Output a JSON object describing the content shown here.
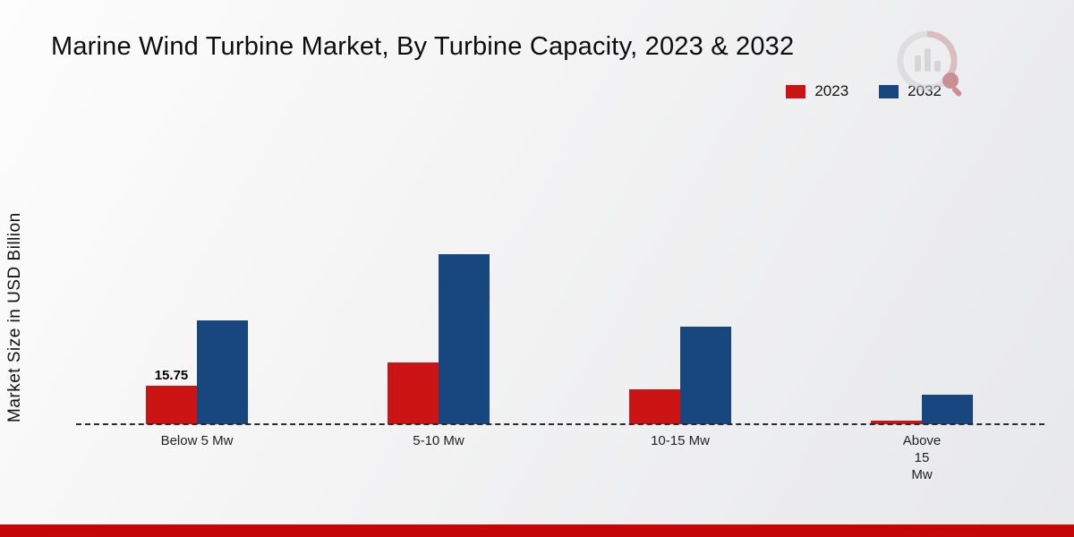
{
  "chart_data": {
    "type": "bar",
    "title": "Marine Wind Turbine Market, By Turbine Capacity, 2023 & 2032",
    "ylabel": "Market Size in USD Billion",
    "xlabel": "",
    "categories": [
      "Below 5 Mw",
      "5-10 Mw",
      "10-15 Mw",
      "Above 15 Mw"
    ],
    "category_label_lines": [
      [
        "Below 5 Mw"
      ],
      [
        "5-10 Mw"
      ],
      [
        "10-15 Mw"
      ],
      [
        "Above",
        "15",
        "Mw"
      ]
    ],
    "series": [
      {
        "name": "2023",
        "color": "#cc1414",
        "values": [
          15.75,
          25.5,
          14.5,
          1.5
        ]
      },
      {
        "name": "2032",
        "color": "#17477e",
        "values": [
          42.5,
          70,
          40,
          12
        ]
      }
    ],
    "ylim": [
      0,
      75
    ],
    "grid": false,
    "legend_position": "top-right",
    "baseline_style": "dashed",
    "annotations": [
      {
        "category_index": 0,
        "series_index": 0,
        "text": "15.75"
      }
    ]
  },
  "footer": {
    "accent_color": "#c40606"
  },
  "logo": {
    "name": "market-research-watermark-logo"
  }
}
